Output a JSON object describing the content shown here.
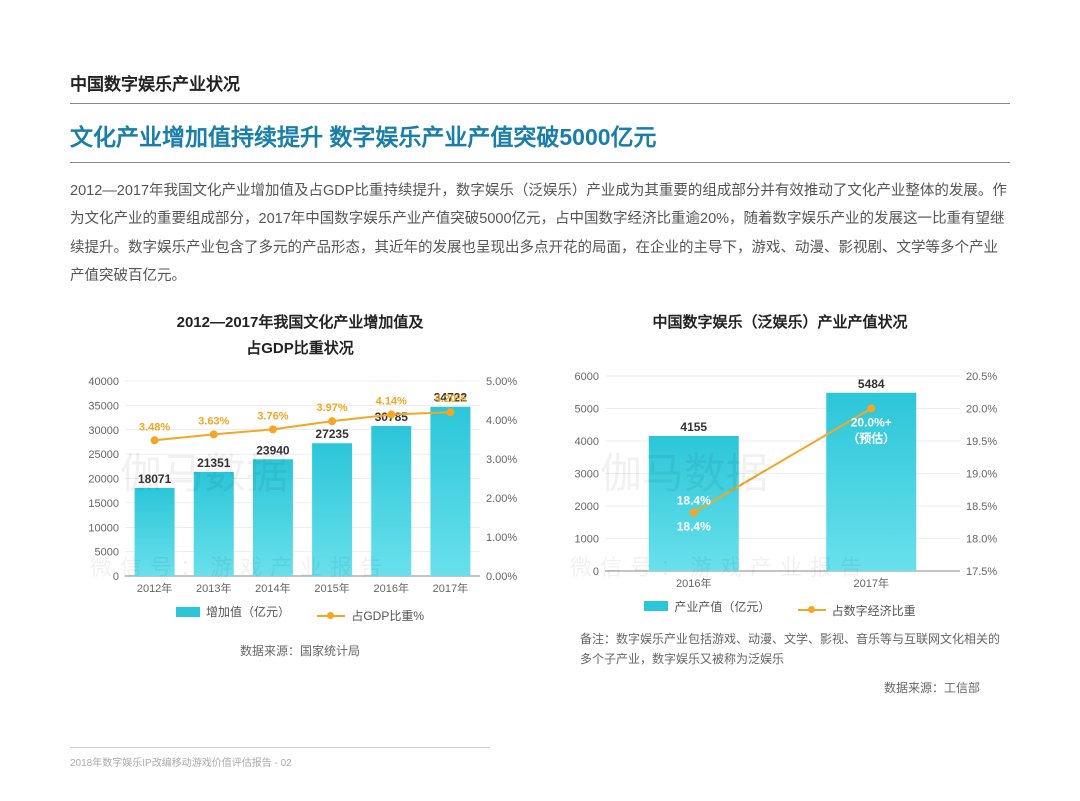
{
  "header": {
    "section_title": "中国数字娱乐产业状况",
    "subtitle": "文化产业增加值持续提升  数字娱乐产业产值突破5000亿元",
    "subtitle_color": "#1a7fa8"
  },
  "body_text": "2012—2017年我国文化产业增加值及占GDP比重持续提升，数字娱乐（泛娱乐）产业成为其重要的组成部分并有效推动了文化产业整体的发展。作为文化产业的重要组成部分，2017年中国数字娱乐产业产值突破5000亿元，占中国数字经济比重逾20%，随着数字娱乐产业的发展这一比重有望继续提升。数字娱乐产业包含了多元的产品形态，其近年的发展也呈现出多点开花的局面，在企业的主导下，游戏、动漫、影视剧、文学等多个产业产值突破百亿元。",
  "chart1": {
    "title_line1": "2012—2017年我国文化产业增加值及",
    "title_line2": "占GDP比重状况",
    "categories": [
      "2012年",
      "2013年",
      "2014年",
      "2015年",
      "2016年",
      "2017年"
    ],
    "bar_values": [
      18071,
      21351,
      23940,
      27235,
      30785,
      34722
    ],
    "line_values": [
      3.48,
      3.63,
      3.76,
      3.97,
      4.14,
      4.2
    ],
    "line_labels": [
      "3.48%",
      "3.63%",
      "3.76%",
      "3.97%",
      "4.14%",
      "4.20%"
    ],
    "bar_color_top": "#2bc6d8",
    "bar_color_bottom": "#69e0ec",
    "line_color": "#f5a623",
    "y1_min": 0,
    "y1_max": 40000,
    "y1_step": 5000,
    "y2_min": 0,
    "y2_max": 5.0,
    "y2_step": 1.0,
    "y2_suffix": "%",
    "legend_bar": "增加值（亿元）",
    "legend_line": "占GDP比重%",
    "source": "数据来源：国家统计局"
  },
  "chart2": {
    "title": "中国数字娱乐（泛娱乐）产业产值状况",
    "categories": [
      "2016年",
      "2017年"
    ],
    "bar_values": [
      4155,
      5484
    ],
    "bar_labels": [
      "4155",
      "5484"
    ],
    "line_values": [
      18.4,
      20.0
    ],
    "line_labels": [
      "18.4%",
      "20.0%+"
    ],
    "inbar_note": "（预估）",
    "bar_color_top": "#2bc6d8",
    "bar_color_bottom": "#69e0ec",
    "line_color": "#f5a623",
    "y1_min": 0,
    "y1_max": 6000,
    "y1_step": 1000,
    "y2_min": 17.5,
    "y2_max": 20.5,
    "y2_step": 0.5,
    "y2_suffix": "%",
    "legend_bar": "产业产值（亿元）",
    "legend_line": "占数字经济比重",
    "note": "备注：数字娱乐产业包括游戏、动漫、文学、影视、音乐等与互联网文化相关的多个子产业，数字娱乐又被称为泛娱乐",
    "source": "数据来源：工信部"
  },
  "footer": "2018年数字娱乐IP改编移动游戏价值评估报告 - 02",
  "watermark_big": "伽马数据",
  "watermark_small": "微信号：游戏产业报告"
}
